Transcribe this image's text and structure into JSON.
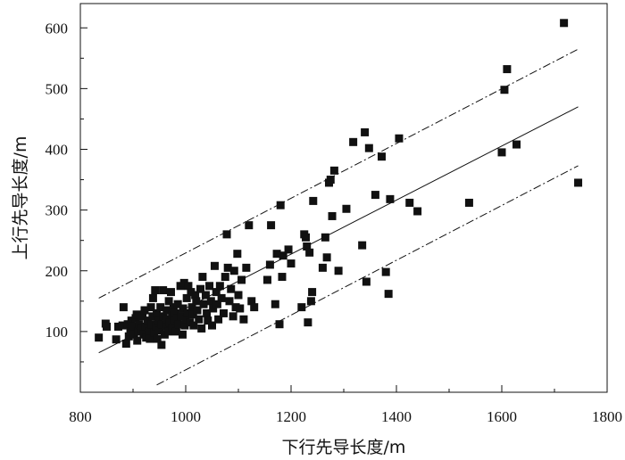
{
  "chart_data": {
    "type": "scatter",
    "title": "",
    "xlabel": "下行先导长度/m",
    "ylabel": "上行先导长度/m",
    "xlim": [
      800,
      1800
    ],
    "ylim": [
      0,
      640
    ],
    "xticks": [
      800,
      1000,
      1200,
      1400,
      1600,
      1800
    ],
    "yticks": [
      100,
      200,
      300,
      400,
      500,
      600
    ],
    "grid": false,
    "marker": "filled-square",
    "marker_color": "#111111",
    "points": [
      [
        835,
        90
      ],
      [
        848,
        113
      ],
      [
        850,
        108
      ],
      [
        868,
        87
      ],
      [
        872,
        108
      ],
      [
        880,
        110
      ],
      [
        882,
        140
      ],
      [
        887,
        80
      ],
      [
        890,
        112
      ],
      [
        892,
        92
      ],
      [
        895,
        100
      ],
      [
        897,
        118
      ],
      [
        900,
        108
      ],
      [
        902,
        95
      ],
      [
        905,
        122
      ],
      [
        907,
        128
      ],
      [
        908,
        85
      ],
      [
        910,
        100
      ],
      [
        912,
        112
      ],
      [
        915,
        105
      ],
      [
        918,
        125
      ],
      [
        920,
        95
      ],
      [
        922,
        135
      ],
      [
        924,
        108
      ],
      [
        925,
        90
      ],
      [
        928,
        118
      ],
      [
        930,
        100
      ],
      [
        932,
        88
      ],
      [
        934,
        140
      ],
      [
        935,
        112
      ],
      [
        937,
        125
      ],
      [
        938,
        155
      ],
      [
        940,
        98
      ],
      [
        942,
        168
      ],
      [
        944,
        108
      ],
      [
        945,
        130
      ],
      [
        946,
        88
      ],
      [
        948,
        118
      ],
      [
        950,
        102
      ],
      [
        952,
        140
      ],
      [
        954,
        78
      ],
      [
        955,
        112
      ],
      [
        957,
        168
      ],
      [
        958,
        125
      ],
      [
        960,
        95
      ],
      [
        962,
        108
      ],
      [
        964,
        135
      ],
      [
        965,
        120
      ],
      [
        967,
        100
      ],
      [
        968,
        150
      ],
      [
        970,
        115
      ],
      [
        972,
        165
      ],
      [
        974,
        128
      ],
      [
        975,
        105
      ],
      [
        977,
        140
      ],
      [
        978,
        118
      ],
      [
        980,
        130
      ],
      [
        982,
        100
      ],
      [
        984,
        122
      ],
      [
        985,
        145
      ],
      [
        987,
        112
      ],
      [
        990,
        175
      ],
      [
        992,
        125
      ],
      [
        994,
        95
      ],
      [
        995,
        138
      ],
      [
        997,
        180
      ],
      [
        998,
        110
      ],
      [
        1000,
        120
      ],
      [
        1002,
        155
      ],
      [
        1004,
        130
      ],
      [
        1005,
        175
      ],
      [
        1008,
        115
      ],
      [
        1010,
        165
      ],
      [
        1012,
        140
      ],
      [
        1014,
        128
      ],
      [
        1015,
        110
      ],
      [
        1018,
        160
      ],
      [
        1020,
        150
      ],
      [
        1022,
        135
      ],
      [
        1025,
        120
      ],
      [
        1028,
        170
      ],
      [
        1030,
        105
      ],
      [
        1032,
        190
      ],
      [
        1034,
        145
      ],
      [
        1038,
        160
      ],
      [
        1040,
        130
      ],
      [
        1042,
        118
      ],
      [
        1045,
        175
      ],
      [
        1048,
        150
      ],
      [
        1050,
        110
      ],
      [
        1052,
        138
      ],
      [
        1055,
        208
      ],
      [
        1058,
        165
      ],
      [
        1060,
        145
      ],
      [
        1062,
        120
      ],
      [
        1065,
        175
      ],
      [
        1068,
        155
      ],
      [
        1072,
        130
      ],
      [
        1075,
        190
      ],
      [
        1078,
        260
      ],
      [
        1080,
        205
      ],
      [
        1083,
        150
      ],
      [
        1086,
        170
      ],
      [
        1090,
        125
      ],
      [
        1092,
        200
      ],
      [
        1095,
        140
      ],
      [
        1098,
        228
      ],
      [
        1100,
        160
      ],
      [
        1103,
        138
      ],
      [
        1106,
        185
      ],
      [
        1110,
        120
      ],
      [
        1115,
        205
      ],
      [
        1120,
        275
      ],
      [
        1125,
        150
      ],
      [
        1130,
        140
      ],
      [
        1155,
        185
      ],
      [
        1160,
        210
      ],
      [
        1162,
        275
      ],
      [
        1170,
        145
      ],
      [
        1173,
        228
      ],
      [
        1178,
        112
      ],
      [
        1180,
        308
      ],
      [
        1183,
        190
      ],
      [
        1185,
        225
      ],
      [
        1195,
        235
      ],
      [
        1200,
        212
      ],
      [
        1220,
        140
      ],
      [
        1225,
        260
      ],
      [
        1228,
        255
      ],
      [
        1230,
        240
      ],
      [
        1232,
        115
      ],
      [
        1235,
        230
      ],
      [
        1238,
        150
      ],
      [
        1240,
        165
      ],
      [
        1242,
        315
      ],
      [
        1260,
        205
      ],
      [
        1265,
        255
      ],
      [
        1268,
        222
      ],
      [
        1272,
        345
      ],
      [
        1275,
        350
      ],
      [
        1278,
        290
      ],
      [
        1282,
        365
      ],
      [
        1290,
        200
      ],
      [
        1305,
        302
      ],
      [
        1318,
        412
      ],
      [
        1335,
        242
      ],
      [
        1340,
        428
      ],
      [
        1343,
        182
      ],
      [
        1348,
        402
      ],
      [
        1360,
        325
      ],
      [
        1372,
        388
      ],
      [
        1380,
        198
      ],
      [
        1385,
        162
      ],
      [
        1388,
        318
      ],
      [
        1405,
        418
      ],
      [
        1425,
        312
      ],
      [
        1440,
        298
      ],
      [
        1538,
        312
      ],
      [
        1600,
        395
      ],
      [
        1605,
        498
      ],
      [
        1610,
        532
      ],
      [
        1628,
        408
      ],
      [
        1718,
        608
      ],
      [
        1745,
        345
      ]
    ],
    "lines": [
      {
        "style": "solid",
        "x": [
          835,
          1745
        ],
        "y": [
          65,
          470
        ]
      },
      {
        "style": "dash-dot",
        "x": [
          835,
          1745
        ],
        "y": [
          155,
          565
        ]
      },
      {
        "style": "dash-dot",
        "x": [
          945,
          1745
        ],
        "y": [
          12,
          373
        ]
      }
    ]
  }
}
